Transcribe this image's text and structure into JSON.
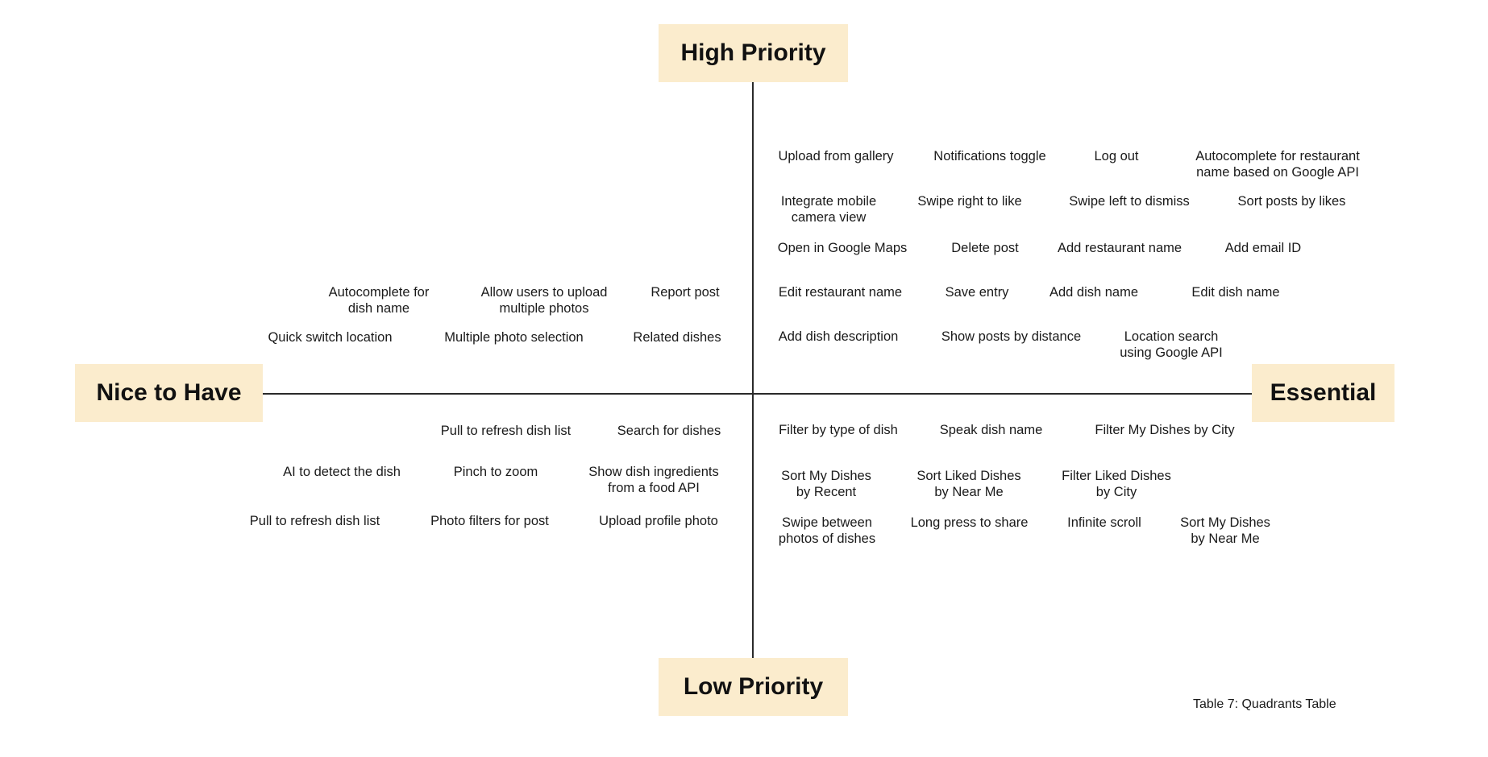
{
  "axes": {
    "top": "High Priority",
    "bottom": "Low Priority",
    "left": "Nice to Have",
    "right": "Essential"
  },
  "quadrants": {
    "high_essential": [
      "Upload from gallery",
      "Notifications toggle",
      "Log out",
      "Autocomplete for restaurant\nname based on Google API",
      "Integrate mobile\ncamera view",
      "Swipe right to like",
      "Swipe left to dismiss",
      "Sort posts by likes",
      "Open in Google Maps",
      "Delete post",
      "Add restaurant name",
      "Add email ID",
      "Edit restaurant name",
      "Save entry",
      "Add dish name",
      "Edit dish name",
      "Add dish description",
      "Show posts by distance",
      "Location search\nusing Google API"
    ],
    "high_nice": [
      "Autocomplete for\ndish name",
      "Allow users to upload\nmultiple photos",
      "Report post",
      "Quick switch location",
      "Multiple photo selection",
      "Related dishes"
    ],
    "low_nice": [
      "Pull to refresh dish list",
      "Search for dishes",
      "AI to detect the dish",
      "Pinch to zoom",
      "Show dish ingredients\nfrom a food API",
      "Pull to refresh dish list",
      "Photo filters for post",
      "Upload profile photo"
    ],
    "low_essential": [
      "Filter by type of dish",
      "Speak dish name",
      "Filter My Dishes by City",
      "Sort My Dishes\nby Recent",
      "Sort Liked Dishes\nby Near Me",
      "Filter Liked Dishes\nby City",
      "Swipe between\nphotos of dishes",
      "Long press to share",
      "Infinite scroll",
      "Sort My Dishes\nby Near Me"
    ]
  },
  "caption": "Table 7: Quadrants Table"
}
